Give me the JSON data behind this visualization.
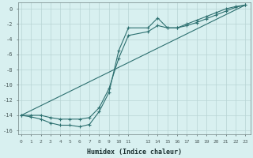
{
  "xlabel": "Humidex (Indice chaleur)",
  "background_color": "#d8f0f0",
  "grid_color": "#b8d4d4",
  "line_color": "#2d7070",
  "x_all": [
    0,
    1,
    2,
    3,
    4,
    5,
    6,
    7,
    8,
    9,
    10,
    11,
    13,
    14,
    15,
    16,
    17,
    18,
    19,
    20,
    21,
    22,
    23
  ],
  "line1_y": [
    -14.0,
    -14.2,
    -14.5,
    -15.0,
    -15.3,
    -15.3,
    -15.5,
    -15.2,
    -13.5,
    -11.0,
    -5.5,
    -2.5,
    -2.5,
    -1.2,
    -2.5,
    -2.5,
    -2.0,
    -1.5,
    -1.0,
    -0.5,
    0.0,
    0.3,
    0.5
  ],
  "line2_y": [
    -14.0,
    -14.0,
    -14.0,
    -14.3,
    -14.5,
    -14.5,
    -14.5,
    -14.3,
    -13.0,
    -10.5,
    -6.5,
    -3.5,
    -3.0,
    -2.2,
    -2.5,
    -2.5,
    -2.2,
    -1.8,
    -1.3,
    -0.8,
    -0.3,
    0.2,
    0.5
  ],
  "line3_x": [
    0,
    23
  ],
  "line3_y": [
    -14.0,
    0.5
  ],
  "xlim": [
    -0.3,
    23.5
  ],
  "ylim": [
    -16.5,
    0.8
  ],
  "xticks": [
    0,
    1,
    2,
    3,
    4,
    5,
    6,
    7,
    8,
    9,
    10,
    11,
    13,
    14,
    15,
    16,
    17,
    18,
    19,
    20,
    21,
    22,
    23
  ],
  "yticks": [
    0,
    -2,
    -4,
    -6,
    -8,
    -10,
    -12,
    -14,
    -16
  ]
}
